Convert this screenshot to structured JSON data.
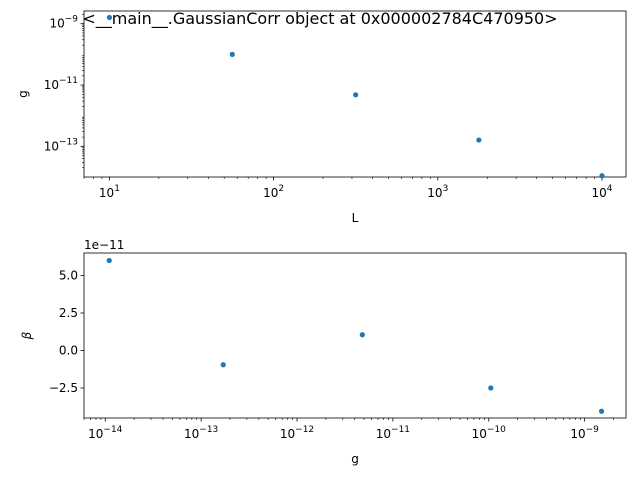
{
  "chart_data": [
    {
      "type": "scatter",
      "title": "<__main__.GaussianCorr object at 0x000002784C470950>",
      "xlabel": "L",
      "ylabel": "g",
      "xscale": "log",
      "yscale": "log",
      "xlim": [
        7.0,
        14000
      ],
      "ylim": [
        1e-14,
        2.6e-09
      ],
      "xticks": [
        {
          "value": 10,
          "base": "10",
          "exp": "1"
        },
        {
          "value": 100,
          "base": "10",
          "exp": "2"
        },
        {
          "value": 1000,
          "base": "10",
          "exp": "3"
        },
        {
          "value": 10000,
          "base": "10",
          "exp": "4"
        }
      ],
      "yticks": [
        {
          "value": 1e-13,
          "base": "10",
          "exp": "−13"
        },
        {
          "value": 1e-11,
          "base": "10",
          "exp": "−11"
        },
        {
          "value": 1e-09,
          "base": "10",
          "exp": "−9"
        }
      ],
      "color": "#1f77b4",
      "x": [
        10,
        56,
        316,
        1778,
        10000
      ],
      "y": [
        1.6e-09,
        1e-10,
        4.8e-12,
        1.6e-13,
        1.1e-14
      ]
    },
    {
      "type": "scatter",
      "xlabel": "g",
      "ylabel": "β",
      "xscale": "log",
      "yscale": "linear",
      "offset_text": "1e−11",
      "xlim": [
        6e-15,
        2.7e-09
      ],
      "ylim": [
        -4.5,
        6.5
      ],
      "xticks": [
        {
          "value": 1e-14,
          "base": "10",
          "exp": "−14"
        },
        {
          "value": 1e-13,
          "base": "10",
          "exp": "−13"
        },
        {
          "value": 1e-12,
          "base": "10",
          "exp": "−12"
        },
        {
          "value": 1e-11,
          "base": "10",
          "exp": "−11"
        },
        {
          "value": 1e-10,
          "base": "10",
          "exp": "−10"
        },
        {
          "value": 1e-09,
          "base": "10",
          "exp": "−9"
        }
      ],
      "yticks": [
        {
          "value": 5.0,
          "label": "5.0"
        },
        {
          "value": 2.5,
          "label": "2.5"
        },
        {
          "value": 0.0,
          "label": "0.0"
        },
        {
          "value": -2.5,
          "label": "−2.5"
        }
      ],
      "color": "#1f77b4",
      "x": [
        1.1e-14,
        1.7e-13,
        4.8e-12,
        1.05e-10,
        1.5e-09
      ],
      "y": [
        6.0,
        -0.95,
        1.05,
        -2.5,
        -4.05
      ]
    }
  ]
}
